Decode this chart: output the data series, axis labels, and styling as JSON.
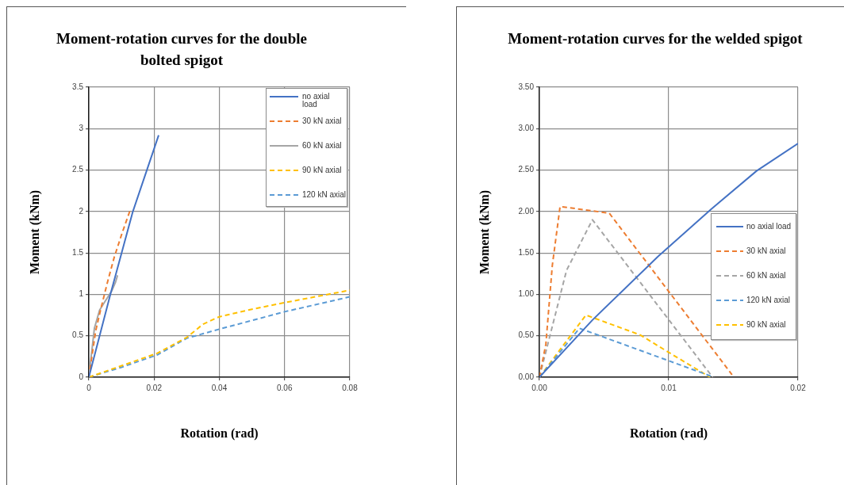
{
  "chart_data": [
    {
      "type": "line",
      "title": "Moment-rotation curves for the double bolted spigot",
      "xlabel": "Rotation (rad)",
      "ylabel": "Moment (kNm)",
      "xlim": [
        0,
        0.08
      ],
      "ylim": [
        0,
        3.5
      ],
      "xticks": [
        0,
        0.02,
        0.04,
        0.06,
        0.08
      ],
      "yticks": [
        0,
        0.5,
        1,
        1.5,
        2,
        2.5,
        3,
        3.5
      ],
      "grid": true,
      "legend": "top right",
      "series": [
        {
          "name": "no axial load",
          "color": "#4472c4",
          "line_style": "solid",
          "x": [
            0,
            0.0033,
            0.0066,
            0.0135,
            0.0214
          ],
          "values": [
            0,
            0.5,
            1.0,
            2.0,
            2.92
          ]
        },
        {
          "name": "30 kN axial",
          "color": "#ed7d31",
          "line_style": "dashed",
          "x": [
            0,
            0.0021,
            0.0037,
            0.0058,
            0.0078,
            0.0102,
            0.0127
          ],
          "values": [
            0,
            0.56,
            0.83,
            1.16,
            1.45,
            1.74,
            2.02
          ]
        },
        {
          "name": "60 kN axial",
          "color": "#a5a5a5",
          "line_style": "solid",
          "x": [
            0,
            0.0017,
            0.0033,
            0.0049,
            0.007,
            0.0082,
            0.0088
          ],
          "values": [
            0,
            0.59,
            0.81,
            0.91,
            1.04,
            1.15,
            1.23
          ]
        },
        {
          "name": "90 kN axial",
          "color": "#ffc000",
          "line_style": "dashed",
          "x": [
            0,
            0.021,
            0.03,
            0.035,
            0.04,
            0.05,
            0.06,
            0.08
          ],
          "values": [
            0,
            0.29,
            0.48,
            0.64,
            0.73,
            0.82,
            0.9,
            1.05
          ]
        },
        {
          "name": "120 kN axial",
          "color": "#5b9bd5",
          "line_style": "dashed",
          "x": [
            0,
            0.01,
            0.021,
            0.03,
            0.04,
            0.06,
            0.08
          ],
          "values": [
            0,
            0.12,
            0.27,
            0.47,
            0.58,
            0.79,
            0.97
          ]
        }
      ]
    },
    {
      "type": "line",
      "title": "Moment-rotation curves for the welded spigot",
      "xlabel": "Rotation (rad)",
      "ylabel": "Moment (kNm)",
      "xlim": [
        0,
        0.02
      ],
      "ylim": [
        0,
        3.5
      ],
      "xticks": [
        {
          "value": 0,
          "label": "0.00"
        },
        {
          "value": 0.01,
          "label": "0.01"
        },
        {
          "value": 0.02,
          "label": "0.02"
        }
      ],
      "yticks": [
        {
          "value": 0,
          "label": "0.00"
        },
        {
          "value": 0.5,
          "label": "0.50"
        },
        {
          "value": 1,
          "label": "1.00"
        },
        {
          "value": 1.5,
          "label": "1.50"
        },
        {
          "value": 2,
          "label": "2.00"
        },
        {
          "value": 2.5,
          "label": "2.50"
        },
        {
          "value": 3,
          "label": "3.00"
        },
        {
          "value": 3.5,
          "label": "3.50"
        }
      ],
      "grid": true,
      "legend": "right",
      "series": [
        {
          "name": "no axial load",
          "color": "#4472c4",
          "line_style": "solid",
          "x": [
            0,
            0.0041,
            0.0092,
            0.0133,
            0.0168,
            0.02
          ],
          "values": [
            0,
            0.69,
            1.46,
            2.03,
            2.49,
            2.82
          ]
        },
        {
          "name": "30 kN axial",
          "color": "#ed7d31",
          "line_style": "dashed",
          "x": [
            0,
            0.0005,
            0.001,
            0.0016,
            0.0054,
            0.0149
          ],
          "values": [
            0,
            0.4,
            1.35,
            2.06,
            1.98,
            0.03
          ]
        },
        {
          "name": "60 kN axial",
          "color": "#a5a5a5",
          "line_style": "dashed",
          "x": [
            0,
            0.0021,
            0.0041,
            0.0134
          ],
          "values": [
            0,
            1.29,
            1.9,
            0
          ]
        },
        {
          "name": "120 kN axial",
          "color": "#5b9bd5",
          "line_style": "dashed",
          "x": [
            0,
            0.0031,
            0.0135
          ],
          "values": [
            0,
            0.59,
            0
          ]
        },
        {
          "name": "90 kN axial",
          "color": "#ffc000",
          "line_style": "dashed",
          "x": [
            0,
            0.0036,
            0.0078,
            0.01,
            0.0132
          ],
          "values": [
            0,
            0.75,
            0.51,
            0.3,
            0
          ]
        }
      ]
    }
  ]
}
